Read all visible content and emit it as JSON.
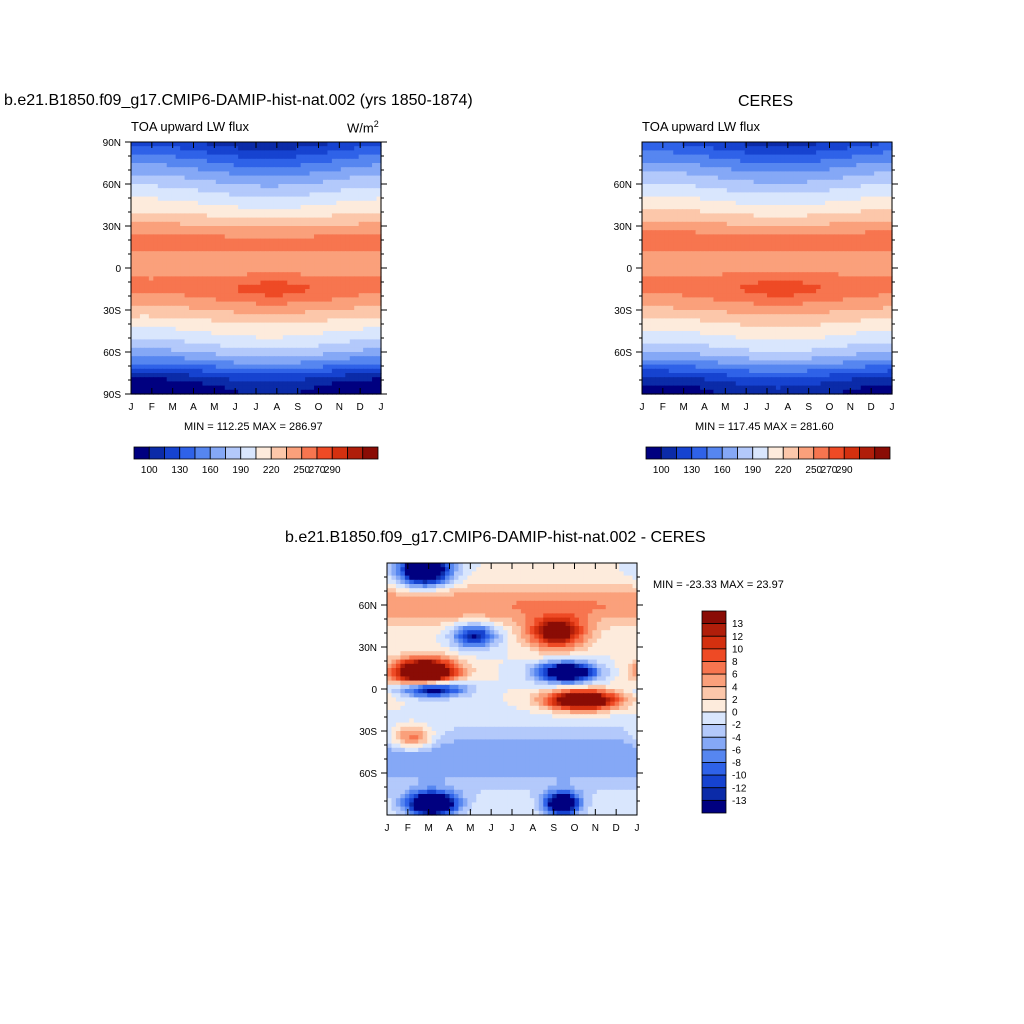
{
  "chart_data": [
    {
      "type": "heatmap",
      "title": "b.e21.B1850.f09_g17.CMIP6-DAMIP-hist-nat.002 (yrs 1850-1874)",
      "left_label": "TOA upward LW flux",
      "right_label": "W/m",
      "right_label_sup": "2",
      "x_tick_labels": [
        "J",
        "F",
        "M",
        "A",
        "M",
        "J",
        "J",
        "A",
        "S",
        "O",
        "N",
        "D",
        "J"
      ],
      "y_tick_labels": [
        "90N",
        "60N",
        "30N",
        "0",
        "30S",
        "60S",
        "90S"
      ],
      "ylim": [
        -90,
        90
      ],
      "stats_text": "MIN = 112.25 MAX = 286.97",
      "min": 112.25,
      "max": 286.97,
      "colorbar_labels": [
        "100",
        "130",
        "160",
        "190",
        "220",
        "250",
        "270",
        "290"
      ]
    },
    {
      "type": "heatmap",
      "title": "CERES",
      "left_label": "TOA upward LW flux",
      "x_tick_labels": [
        "J",
        "F",
        "M",
        "A",
        "M",
        "J",
        "J",
        "A",
        "S",
        "O",
        "N",
        "D",
        "J"
      ],
      "y_tick_labels": [
        "60N",
        "30N",
        "0",
        "30S",
        "60S"
      ],
      "ylim": [
        -90,
        90
      ],
      "stats_text": "MIN = 117.45 MAX = 281.60",
      "min": 117.45,
      "max": 281.6,
      "colorbar_labels": [
        "100",
        "130",
        "160",
        "190",
        "220",
        "250",
        "270",
        "290"
      ]
    },
    {
      "type": "heatmap",
      "title": "b.e21.B1850.f09_g17.CMIP6-DAMIP-hist-nat.002 - CERES",
      "x_tick_labels": [
        "J",
        "F",
        "M",
        "A",
        "M",
        "J",
        "J",
        "A",
        "S",
        "O",
        "N",
        "D",
        "J"
      ],
      "y_tick_labels": [
        "60N",
        "30N",
        "0",
        "30S",
        "60S"
      ],
      "ylim": [
        -90,
        90
      ],
      "stats_text": "MIN = -23.33 MAX =  23.97",
      "min": -23.33,
      "max": 23.97,
      "colorbar_labels": [
        "13",
        "12",
        "10",
        "8",
        "6",
        "4",
        "2",
        "0",
        "-2",
        "-4",
        "-6",
        "-8",
        "-10",
        "-12",
        "-13"
      ]
    }
  ],
  "colors": {
    "abs_scale": [
      "#000080",
      "#0b2ba8",
      "#1643d0",
      "#2f62e8",
      "#5686f0",
      "#85a8f6",
      "#b3c9fb",
      "#d9e6fd",
      "#fdebdc",
      "#fcc7aa",
      "#faa07b",
      "#f7754f",
      "#ee4a25",
      "#d4300f",
      "#b01e0a",
      "#8a0c05"
    ],
    "diff_scale": [
      "#8a0c05",
      "#b01e0a",
      "#d4300f",
      "#ee4a25",
      "#f7754f",
      "#faa07b",
      "#fcc7aa",
      "#fdebdc",
      "#d9e6fd",
      "#b3c9fb",
      "#85a8f6",
      "#5686f0",
      "#2f62e8",
      "#1643d0",
      "#0b2ba8",
      "#000080"
    ]
  }
}
